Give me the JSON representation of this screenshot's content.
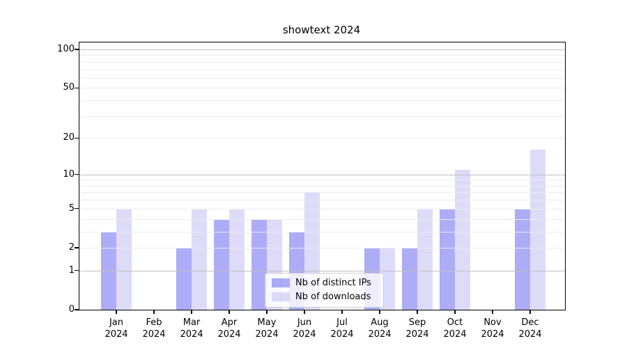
{
  "chart_data": {
    "type": "bar",
    "title": "showtext 2024",
    "x": [
      {
        "month": "Jan",
        "year": "2024"
      },
      {
        "month": "Feb",
        "year": "2024"
      },
      {
        "month": "Mar",
        "year": "2024"
      },
      {
        "month": "Apr",
        "year": "2024"
      },
      {
        "month": "May",
        "year": "2024"
      },
      {
        "month": "Jun",
        "year": "2024"
      },
      {
        "month": "Jul",
        "year": "2024"
      },
      {
        "month": "Aug",
        "year": "2024"
      },
      {
        "month": "Sep",
        "year": "2024"
      },
      {
        "month": "Oct",
        "year": "2024"
      },
      {
        "month": "Nov",
        "year": "2024"
      },
      {
        "month": "Dec",
        "year": "2024"
      }
    ],
    "series": [
      {
        "name": "Nb of distinct IPs",
        "color": "#5a5af0",
        "fill_opacity": 0.5,
        "values": [
          3,
          0,
          2,
          4,
          4,
          3,
          0,
          2,
          2,
          5,
          0,
          5
        ]
      },
      {
        "name": "Nb of downloads",
        "color": "#b9b9f3",
        "fill_opacity": 0.5,
        "values": [
          5,
          0,
          5,
          5,
          4,
          7,
          0,
          2,
          5,
          11,
          0,
          16
        ]
      }
    ],
    "y_scale": "log10(value+1)",
    "y_ticks": [
      0,
      1,
      2,
      5,
      10,
      20,
      50,
      100
    ],
    "grid_major": [
      1,
      10,
      100
    ],
    "grid_minor": [
      2,
      3,
      4,
      5,
      6,
      7,
      8,
      9,
      20,
      30,
      40,
      50,
      60,
      70,
      80,
      90
    ],
    "ylim": [
      0,
      113
    ],
    "grid": "on",
    "legend_position": "lower center",
    "xlabel": "",
    "ylabel": ""
  }
}
